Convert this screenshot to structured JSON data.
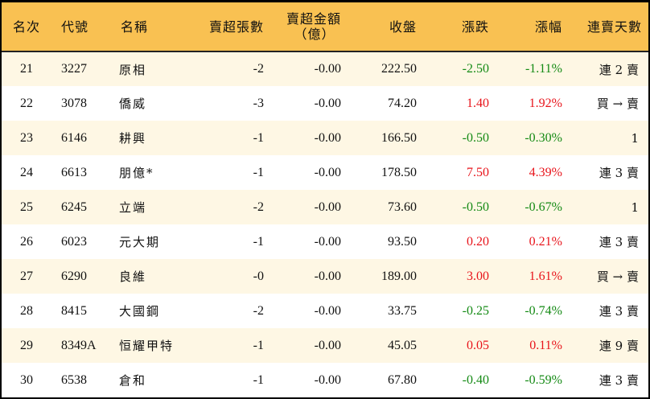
{
  "headers": {
    "rank": "名次",
    "code": "代號",
    "name": "名稱",
    "sell_lots": "賣超張數",
    "sell_amount": "賣超金額",
    "sell_amount_unit": "（億）",
    "close": "收盤",
    "change": "漲跌",
    "pct": "漲幅",
    "streak": "連賣天數"
  },
  "colors": {
    "header_bg": "#F9C152",
    "row_alt": "#FEF7E4",
    "up": "#e8141b",
    "down": "#148a14"
  },
  "rows": [
    {
      "rank": "21",
      "code": "3227",
      "name": "原相",
      "sell_lots": "-2",
      "sell_amount": "-0.00",
      "close": "222.50",
      "change": "-2.50",
      "pct": "-1.11%",
      "streak": "連 2 賣",
      "dir": "dn"
    },
    {
      "rank": "22",
      "code": "3078",
      "name": "僑威",
      "sell_lots": "-3",
      "sell_amount": "-0.00",
      "close": "74.20",
      "change": "1.40",
      "pct": "1.92%",
      "streak": "買 → 賣",
      "dir": "up"
    },
    {
      "rank": "23",
      "code": "6146",
      "name": "耕興",
      "sell_lots": "-1",
      "sell_amount": "-0.00",
      "close": "166.50",
      "change": "-0.50",
      "pct": "-0.30%",
      "streak": "1",
      "dir": "dn"
    },
    {
      "rank": "24",
      "code": "6613",
      "name": "朋億*",
      "sell_lots": "-1",
      "sell_amount": "-0.00",
      "close": "178.50",
      "change": "7.50",
      "pct": "4.39%",
      "streak": "連 3 賣",
      "dir": "up"
    },
    {
      "rank": "25",
      "code": "6245",
      "name": "立端",
      "sell_lots": "-2",
      "sell_amount": "-0.00",
      "close": "73.60",
      "change": "-0.50",
      "pct": "-0.67%",
      "streak": "1",
      "dir": "dn"
    },
    {
      "rank": "26",
      "code": "6023",
      "name": "元大期",
      "sell_lots": "-1",
      "sell_amount": "-0.00",
      "close": "93.50",
      "change": "0.20",
      "pct": "0.21%",
      "streak": "連 3 賣",
      "dir": "up"
    },
    {
      "rank": "27",
      "code": "6290",
      "name": "良維",
      "sell_lots": "-0",
      "sell_amount": "-0.00",
      "close": "189.00",
      "change": "3.00",
      "pct": "1.61%",
      "streak": "買 → 賣",
      "dir": "up"
    },
    {
      "rank": "28",
      "code": "8415",
      "name": "大國鋼",
      "sell_lots": "-2",
      "sell_amount": "-0.00",
      "close": "33.75",
      "change": "-0.25",
      "pct": "-0.74%",
      "streak": "連 3 賣",
      "dir": "dn"
    },
    {
      "rank": "29",
      "code": "8349A",
      "name": "恒耀甲特",
      "sell_lots": "-1",
      "sell_amount": "-0.00",
      "close": "45.05",
      "change": "0.05",
      "pct": "0.11%",
      "streak": "連 9 賣",
      "dir": "up"
    },
    {
      "rank": "30",
      "code": "6538",
      "name": "倉和",
      "sell_lots": "-1",
      "sell_amount": "-0.00",
      "close": "67.80",
      "change": "-0.40",
      "pct": "-0.59%",
      "streak": "連 3 賣",
      "dir": "dn"
    }
  ]
}
